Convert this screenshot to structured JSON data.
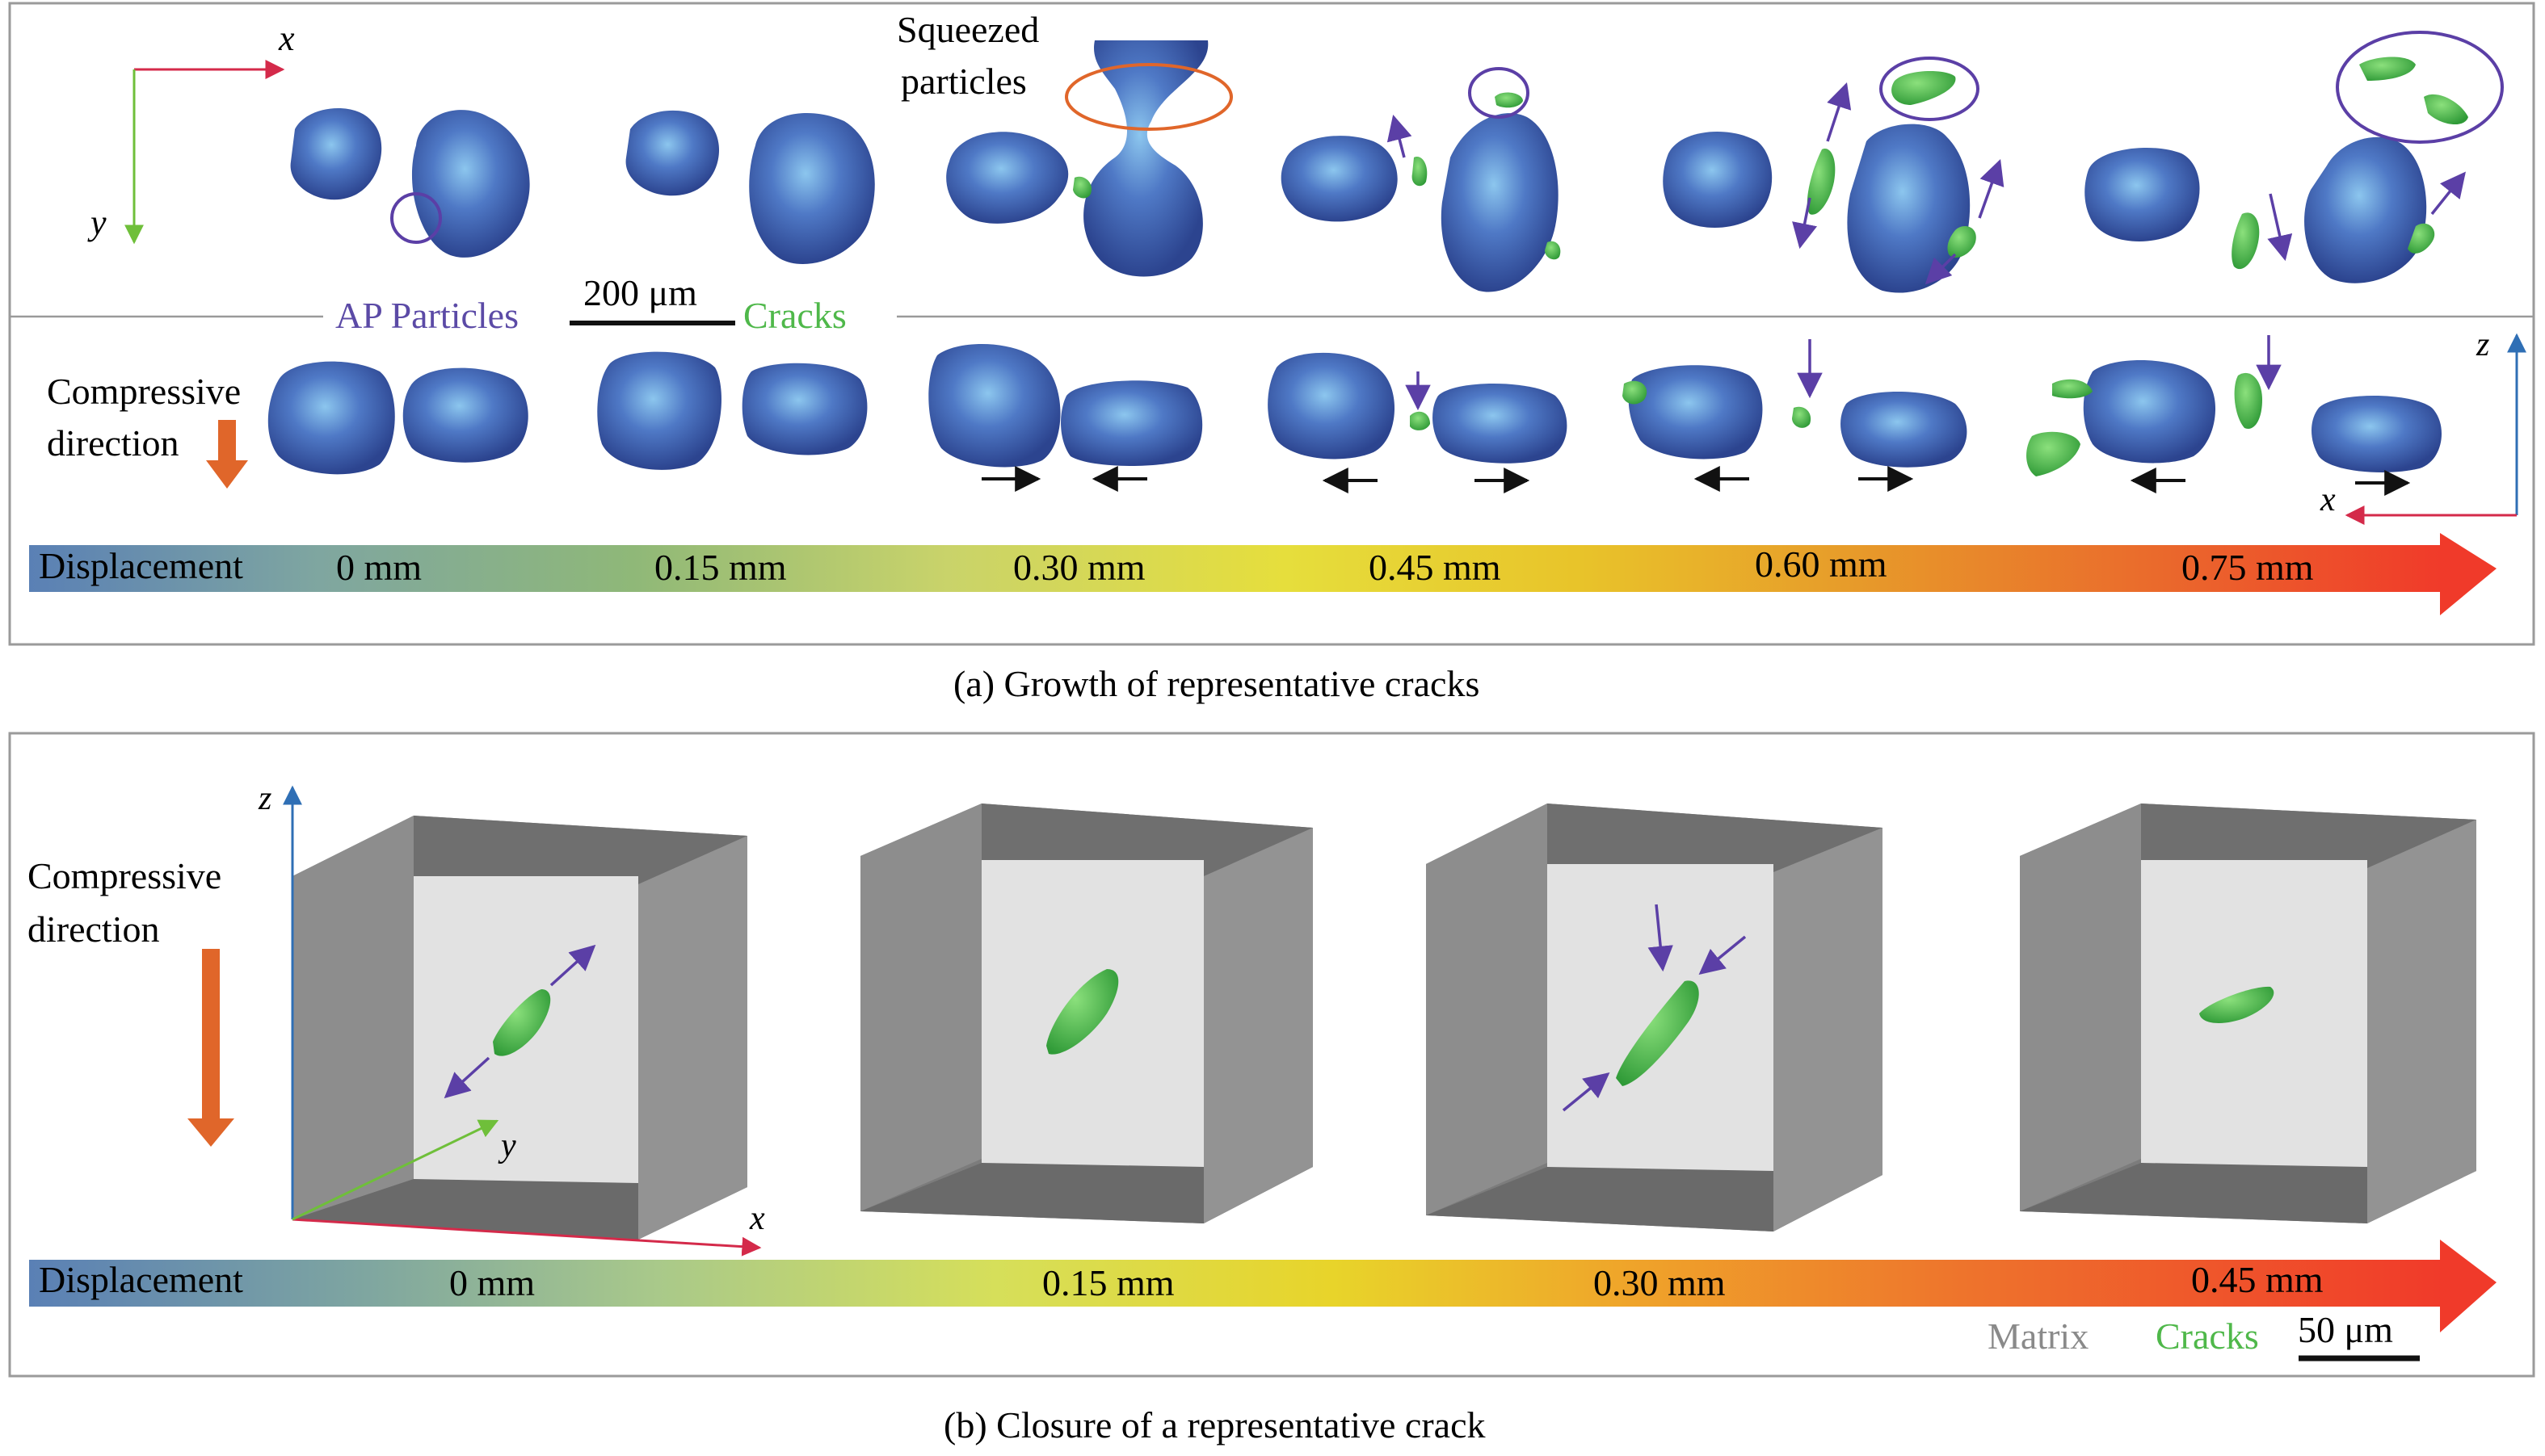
{
  "panel_a": {
    "axis_x": "x",
    "axis_y": "y",
    "axis_z": "z",
    "squeezed_line1": "Squeezed",
    "squeezed_line2": "particles",
    "scale_bar": "200 μm",
    "legend_particles": "AP Particles",
    "legend_cracks": "Cracks",
    "compressive_line1": "Compressive",
    "compressive_line2": "direction",
    "bar_label": "Displacement",
    "bar_ticks": [
      "0 mm",
      "0.15 mm",
      "0.30 mm",
      "0.45 mm",
      "0.60 mm",
      "0.75 mm"
    ],
    "caption": "(a) Growth of representative cracks"
  },
  "panel_b": {
    "axis_x": "x",
    "axis_y": "y",
    "axis_z": "z",
    "compressive_line1": "Compressive",
    "compressive_line2": "direction",
    "bar_label": "Displacement",
    "bar_ticks": [
      "0 mm",
      "0.15 mm",
      "0.30 mm",
      "0.45 mm"
    ],
    "legend_matrix": "Matrix",
    "legend_cracks": "Cracks",
    "scale_bar": "50 μm",
    "caption": "(b) Closure of a representative crack"
  },
  "colors": {
    "particle": "#3d5cb0",
    "particle_light": "#7fb4e6",
    "crack": "#4fb84a",
    "arrow_purple": "#5b3fa6",
    "arrow_orange": "#e0662a",
    "axis_red": "#d42a4a",
    "axis_green": "#6fbf3a",
    "axis_blue": "#2f6fb5",
    "matrix": "#8a8a8a",
    "label_purple": "#5b4aa6"
  }
}
